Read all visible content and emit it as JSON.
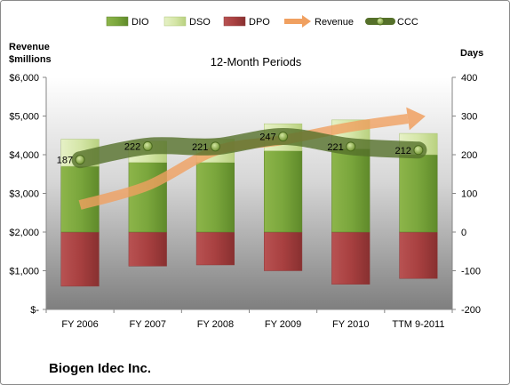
{
  "chart_data": {
    "type": "bar",
    "title": "12-Month Periods",
    "footer": "Biogen Idec Inc.",
    "y_left_label_line1": "Revenue",
    "y_left_label_line2": "$millions",
    "y_right_label": "Days",
    "y_left_range": [
      0,
      6000
    ],
    "y_right_range": [
      -200,
      400
    ],
    "y_left_ticks": [
      "$-",
      "$1,000",
      "$2,000",
      "$3,000",
      "$4,000",
      "$5,000",
      "$6,000"
    ],
    "y_right_ticks": [
      "-200",
      "-100",
      "0",
      "100",
      "200",
      "300",
      "400"
    ],
    "grid": false,
    "legend_position": "top",
    "categories": [
      "FY 2006",
      "FY 2007",
      "FY 2008",
      "FY 2009",
      "FY 2010",
      "TTM 9-2011"
    ],
    "series": [
      {
        "name": "DIO",
        "axis": "right",
        "color": "#77A33A",
        "values": [
          170,
          180,
          180,
          210,
          215,
          200
        ]
      },
      {
        "name": "DSO",
        "axis": "right",
        "color": "#D7E8AE",
        "values": [
          70,
          55,
          60,
          70,
          75,
          55
        ]
      },
      {
        "name": "DPO",
        "axis": "right",
        "color": "#A84040",
        "values": [
          -140,
          -88,
          -85,
          -100,
          -135,
          -120
        ]
      },
      {
        "name": "Revenue",
        "axis": "left",
        "color": "#F0A060",
        "values": [
          2700,
          3200,
          4100,
          4380,
          4720,
          4970
        ]
      },
      {
        "name": "CCC",
        "axis": "right",
        "color": "#6F8B3A",
        "values": [
          187,
          222,
          221,
          247,
          221,
          212
        ],
        "labels": [
          "187",
          "222",
          "221",
          "247",
          "221",
          "212"
        ]
      }
    ]
  }
}
